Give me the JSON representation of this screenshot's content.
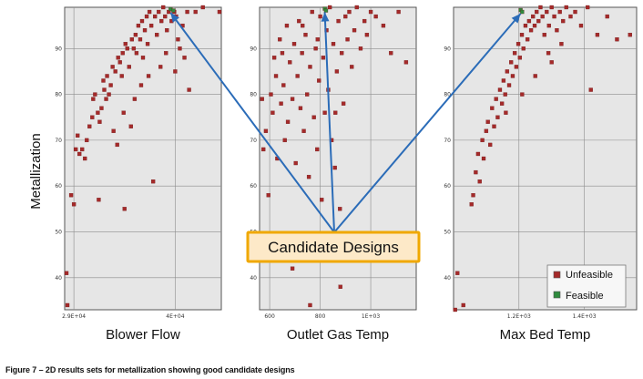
{
  "chart_data": [
    {
      "type": "scatter",
      "xlabel": "Blower Flow",
      "ylabel": "Metallization",
      "xlim": [
        28000,
        45000
      ],
      "ylim": [
        33,
        99
      ],
      "x_ticks": [
        {
          "value": 29000,
          "label": "2.9E+04"
        },
        {
          "value": 40000,
          "label": "4E+04"
        }
      ],
      "y_ticks": [
        {
          "value": 40,
          "label": "40"
        },
        {
          "value": 50,
          "label": "50"
        },
        {
          "value": 60,
          "label": "60"
        },
        {
          "value": 70,
          "label": "70"
        },
        {
          "value": 80,
          "label": "80"
        },
        {
          "value": 90,
          "label": "90"
        }
      ],
      "series": [
        {
          "name": "Unfeasible",
          "color": "#a52a2a",
          "points": [
            [
              28200,
              41
            ],
            [
              28300,
              34
            ],
            [
              28700,
              58
            ],
            [
              29000,
              56
            ],
            [
              29200,
              68
            ],
            [
              29400,
              71
            ],
            [
              29600,
              67
            ],
            [
              29900,
              68
            ],
            [
              30200,
              66
            ],
            [
              30400,
              70
            ],
            [
              30700,
              73
            ],
            [
              31000,
              75
            ],
            [
              31100,
              79
            ],
            [
              31300,
              80
            ],
            [
              31600,
              76
            ],
            [
              31700,
              57
            ],
            [
              31800,
              74
            ],
            [
              32000,
              77
            ],
            [
              32200,
              83
            ],
            [
              32300,
              81
            ],
            [
              32500,
              79
            ],
            [
              32600,
              84
            ],
            [
              32800,
              80
            ],
            [
              33000,
              82
            ],
            [
              33200,
              86
            ],
            [
              33500,
              85
            ],
            [
              33700,
              69
            ],
            [
              33800,
              88
            ],
            [
              34000,
              87
            ],
            [
              34200,
              84
            ],
            [
              34300,
              89
            ],
            [
              34500,
              55
            ],
            [
              34600,
              91
            ],
            [
              34800,
              90
            ],
            [
              35000,
              86
            ],
            [
              35200,
              73
            ],
            [
              35300,
              92
            ],
            [
              35500,
              90
            ],
            [
              35700,
              93
            ],
            [
              35800,
              89
            ],
            [
              36000,
              95
            ],
            [
              36200,
              92
            ],
            [
              36400,
              96
            ],
            [
              36500,
              88
            ],
            [
              36700,
              94
            ],
            [
              36900,
              97
            ],
            [
              37000,
              91
            ],
            [
              37200,
              98
            ],
            [
              37400,
              95
            ],
            [
              37600,
              61
            ],
            [
              37800,
              97
            ],
            [
              38000,
              93
            ],
            [
              38200,
              98
            ],
            [
              38500,
              96
            ],
            [
              38700,
              99
            ],
            [
              38900,
              97
            ],
            [
              39100,
              94
            ],
            [
              39300,
              98
            ],
            [
              39600,
              96
            ],
            [
              39900,
              98
            ],
            [
              40100,
              97
            ],
            [
              40300,
              92
            ],
            [
              40500,
              90
            ],
            [
              40800,
              95
            ],
            [
              41000,
              88
            ],
            [
              41300,
              98
            ],
            [
              41500,
              81
            ],
            [
              42200,
              98
            ],
            [
              43000,
              99
            ],
            [
              44800,
              98
            ],
            [
              37100,
              84
            ],
            [
              36300,
              82
            ],
            [
              35600,
              79
            ],
            [
              34400,
              76
            ],
            [
              33300,
              72
            ],
            [
              38400,
              86
            ],
            [
              39000,
              89
            ],
            [
              40000,
              85
            ]
          ]
        },
        {
          "name": "Feasible",
          "color": "#2e8b3d",
          "points": [
            [
              39500,
              98.6
            ],
            [
              39800,
              98.3
            ]
          ]
        }
      ]
    },
    {
      "type": "scatter",
      "xlabel": "Outlet Gas Temp",
      "ylabel": "",
      "xlim": [
        560,
        1180
      ],
      "ylim": [
        33,
        99
      ],
      "x_ticks": [
        {
          "value": 600,
          "label": "600"
        },
        {
          "value": 800,
          "label": "800"
        },
        {
          "value": 1000,
          "label": "1E+03"
        }
      ],
      "y_ticks": [
        {
          "value": 40,
          "label": "40"
        },
        {
          "value": 50,
          "label": "50"
        },
        {
          "value": 60,
          "label": "60"
        },
        {
          "value": 70,
          "label": "70"
        },
        {
          "value": 80,
          "label": "80"
        },
        {
          "value": 90,
          "label": "90"
        }
      ],
      "series": [
        {
          "name": "Unfeasible",
          "color": "#a52a2a",
          "points": [
            [
              570,
              79
            ],
            [
              575,
              68
            ],
            [
              585,
              72
            ],
            [
              595,
              58
            ],
            [
              605,
              80
            ],
            [
              612,
              76
            ],
            [
              618,
              88
            ],
            [
              625,
              84
            ],
            [
              630,
              66
            ],
            [
              640,
              92
            ],
            [
              645,
              78
            ],
            [
              655,
              82
            ],
            [
              660,
              70
            ],
            [
              668,
              95
            ],
            [
              672,
              74
            ],
            [
              680,
              87
            ],
            [
              690,
              79
            ],
            [
              697,
              91
            ],
            [
              703,
              65
            ],
            [
              710,
              84
            ],
            [
              716,
              96
            ],
            [
              722,
              77
            ],
            [
              728,
              89
            ],
            [
              735,
              72
            ],
            [
              742,
              93
            ],
            [
              748,
              80
            ],
            [
              755,
              62
            ],
            [
              760,
              86
            ],
            [
              768,
              98
            ],
            [
              775,
              75
            ],
            [
              782,
              90
            ],
            [
              788,
              68
            ],
            [
              795,
              83
            ],
            [
              800,
              97
            ],
            [
              806,
              57
            ],
            [
              812,
              88
            ],
            [
              818,
              76
            ],
            [
              825,
              94
            ],
            [
              832,
              81
            ],
            [
              838,
              99
            ],
            [
              845,
              70
            ],
            [
              852,
              91
            ],
            [
              858,
              64
            ],
            [
              866,
              85
            ],
            [
              872,
              96
            ],
            [
              878,
              55
            ],
            [
              885,
              89
            ],
            [
              892,
              78
            ],
            [
              900,
              97
            ],
            [
              908,
              92
            ],
            [
              915,
              98
            ],
            [
              925,
              86
            ],
            [
              935,
              94
            ],
            [
              945,
              99
            ],
            [
              960,
              90
            ],
            [
              975,
              96
            ],
            [
              985,
              93
            ],
            [
              1000,
              98
            ],
            [
              1020,
              97
            ],
            [
              1050,
              95
            ],
            [
              1080,
              89
            ],
            [
              1110,
              98
            ],
            [
              1140,
              87
            ],
            [
              820,
              48
            ],
            [
              760,
              34
            ],
            [
              690,
              42
            ],
            [
              880,
              38
            ],
            [
              650,
              89
            ],
            [
              730,
              95
            ],
            [
              790,
              92
            ],
            [
              860,
              76
            ]
          ]
        },
        {
          "name": "Feasible",
          "color": "#2e8b3d",
          "points": [
            [
              818,
              98.7
            ],
            [
              823,
              98.3
            ]
          ]
        }
      ]
    },
    {
      "type": "scatter",
      "xlabel": "Max Bed Temp",
      "ylabel": "",
      "xlim": [
        1000,
        1560
      ],
      "ylim": [
        33,
        99
      ],
      "x_ticks": [
        {
          "value": 1200,
          "label": "1.2E+03"
        },
        {
          "value": 1400,
          "label": "1.4E+03"
        }
      ],
      "y_ticks": [
        {
          "value": 40,
          "label": "40"
        },
        {
          "value": 50,
          "label": "50"
        },
        {
          "value": 60,
          "label": "60"
        },
        {
          "value": 70,
          "label": "70"
        },
        {
          "value": 80,
          "label": "80"
        },
        {
          "value": 90,
          "label": "90"
        }
      ],
      "series": [
        {
          "name": "Unfeasible",
          "color": "#a52a2a",
          "points": [
            [
              1005,
              33
            ],
            [
              1012,
              41
            ],
            [
              1030,
              34
            ],
            [
              1055,
              56
            ],
            [
              1060,
              58
            ],
            [
              1068,
              63
            ],
            [
              1075,
              67
            ],
            [
              1080,
              61
            ],
            [
              1088,
              70
            ],
            [
              1092,
              66
            ],
            [
              1100,
              72
            ],
            [
              1105,
              74
            ],
            [
              1112,
              69
            ],
            [
              1118,
              77
            ],
            [
              1124,
              73
            ],
            [
              1130,
              79
            ],
            [
              1135,
              75
            ],
            [
              1142,
              81
            ],
            [
              1148,
              78
            ],
            [
              1153,
              83
            ],
            [
              1158,
              80
            ],
            [
              1164,
              85
            ],
            [
              1170,
              82
            ],
            [
              1176,
              87
            ],
            [
              1181,
              84
            ],
            [
              1187,
              89
            ],
            [
              1192,
              86
            ],
            [
              1198,
              91
            ],
            [
              1203,
              88
            ],
            [
              1209,
              93
            ],
            [
              1214,
              90
            ],
            [
              1220,
              95
            ],
            [
              1226,
              92
            ],
            [
              1231,
              96
            ],
            [
              1237,
              94
            ],
            [
              1243,
              97
            ],
            [
              1248,
              95
            ],
            [
              1254,
              98
            ],
            [
              1260,
              96
            ],
            [
              1266,
              99
            ],
            [
              1272,
              97
            ],
            [
              1278,
              93
            ],
            [
              1285,
              98
            ],
            [
              1292,
              95
            ],
            [
              1300,
              99
            ],
            [
              1308,
              97
            ],
            [
              1316,
              94
            ],
            [
              1325,
              98
            ],
            [
              1335,
              96
            ],
            [
              1345,
              99
            ],
            [
              1358,
              97
            ],
            [
              1372,
              98
            ],
            [
              1390,
              95
            ],
            [
              1410,
              99
            ],
            [
              1440,
              93
            ],
            [
              1470,
              97
            ],
            [
              1500,
              92
            ],
            [
              1540,
              93
            ],
            [
              1420,
              81
            ],
            [
              1300,
              87
            ],
            [
              1210,
              80
            ],
            [
              1160,
              76
            ],
            [
              1250,
              84
            ],
            [
              1290,
              89
            ],
            [
              1330,
              91
            ]
          ]
        },
        {
          "name": "Feasible",
          "color": "#2e8b3d",
          "points": [
            [
              1205,
              98.4
            ],
            [
              1210,
              98.0
            ]
          ]
        }
      ]
    }
  ],
  "legend": [
    {
      "label": "Unfeasible",
      "color": "#a52a2a"
    },
    {
      "label": "Feasible",
      "color": "#2e8b3d"
    }
  ],
  "annotation": {
    "label": "Candidate Designs",
    "fill": "#fde9c8",
    "border": "#f0a800",
    "arrow_color": "#2b6cb8"
  },
  "caption": "Figure 7 – 2D results sets for metallization showing good candidate designs"
}
